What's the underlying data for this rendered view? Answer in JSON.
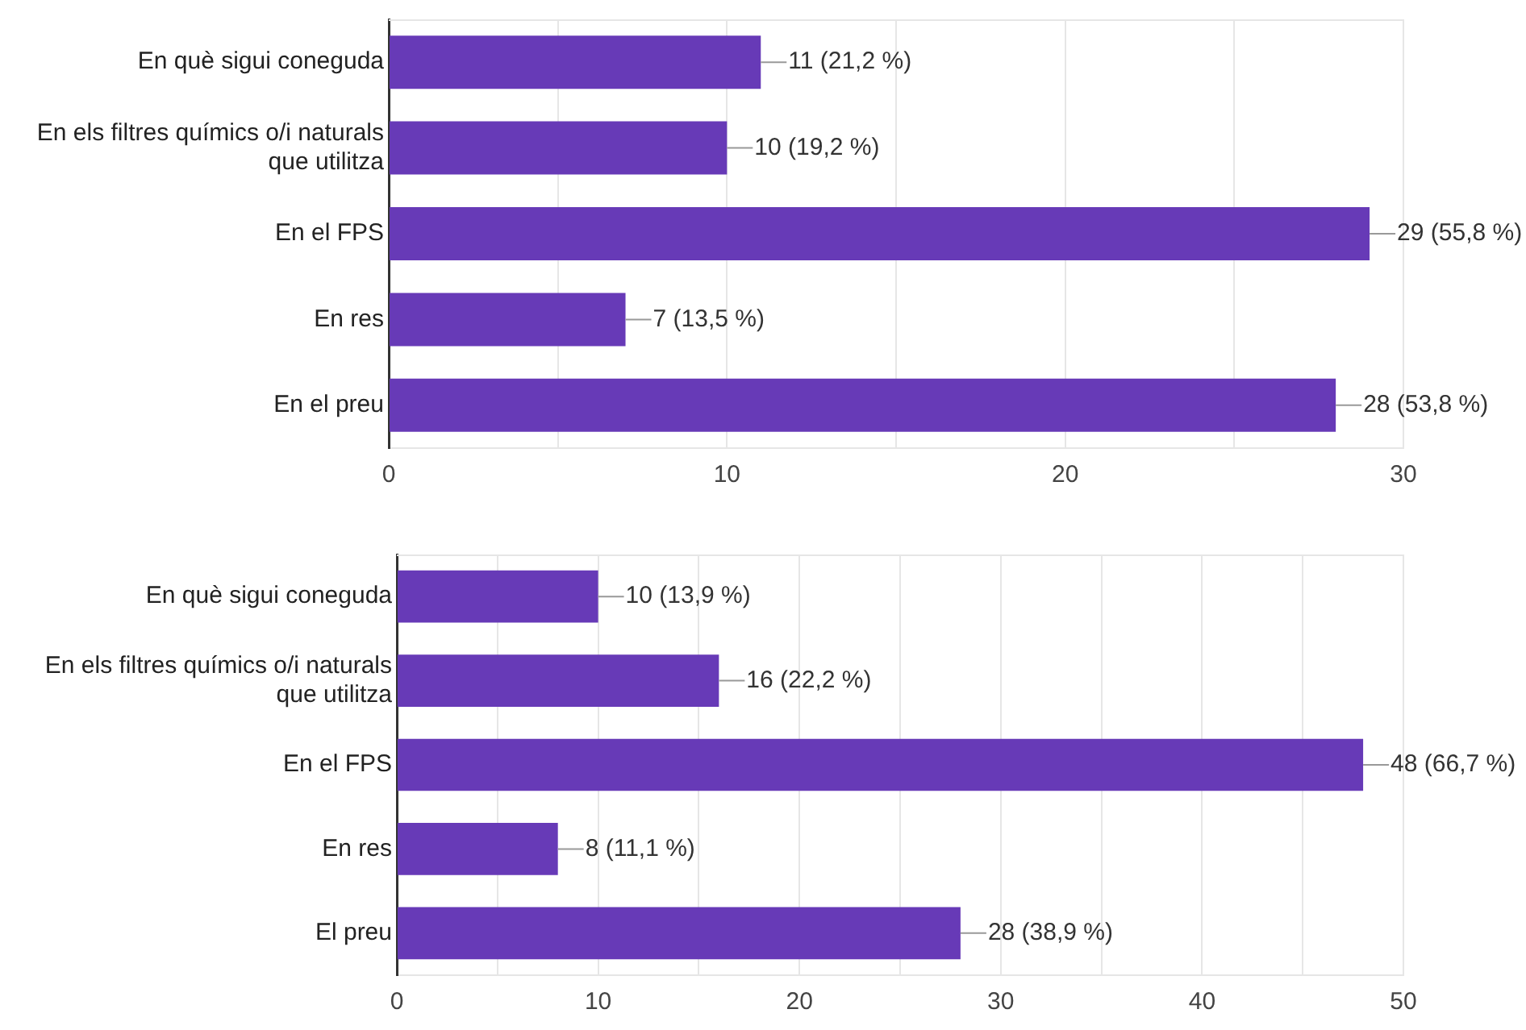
{
  "chart_data": [
    {
      "type": "bar",
      "orientation": "horizontal",
      "categories": [
        "En què sigui coneguda",
        "En els filtres químics o/i naturals que utilitza",
        "En el FPS",
        "En res",
        "En el preu"
      ],
      "values": [
        11,
        10,
        29,
        7,
        28
      ],
      "color": "#673ab7",
      "xlim": [
        0,
        30
      ],
      "xticks": [
        0,
        {
          "value": 5,
          "label": null
        },
        10,
        {
          "value": 15,
          "label": null
        },
        20,
        {
          "value": 25,
          "label": null
        },
        30
      ],
      "grid": "x",
      "value_labels": [
        "11 (21,2 %)",
        "10 (19,2 %)",
        "29 (55,8 %)",
        "7 (13,5 %)",
        "28 (53,8 %)"
      ]
    },
    {
      "type": "bar",
      "orientation": "horizontal",
      "categories": [
        "En què sigui coneguda",
        "En els filtres químics o/i naturals que utilitza",
        "En el FPS",
        "En res",
        "El preu"
      ],
      "values": [
        10,
        16,
        48,
        8,
        28
      ],
      "color": "#673ab7",
      "xlim": [
        0,
        50
      ],
      "xticks": [
        0,
        {
          "value": 5,
          "label": null
        },
        10,
        {
          "value": 15,
          "label": null
        },
        20,
        {
          "value": 25,
          "label": null
        },
        30,
        {
          "value": 35,
          "label": null
        },
        40,
        {
          "value": 45,
          "label": null
        },
        50
      ],
      "grid": "x",
      "value_labels": [
        "10 (13,9 %)",
        "16 (22,2 %)",
        "48 (66,7 %)",
        "8 (11,1 %)",
        "28 (38,9 %)"
      ]
    }
  ]
}
